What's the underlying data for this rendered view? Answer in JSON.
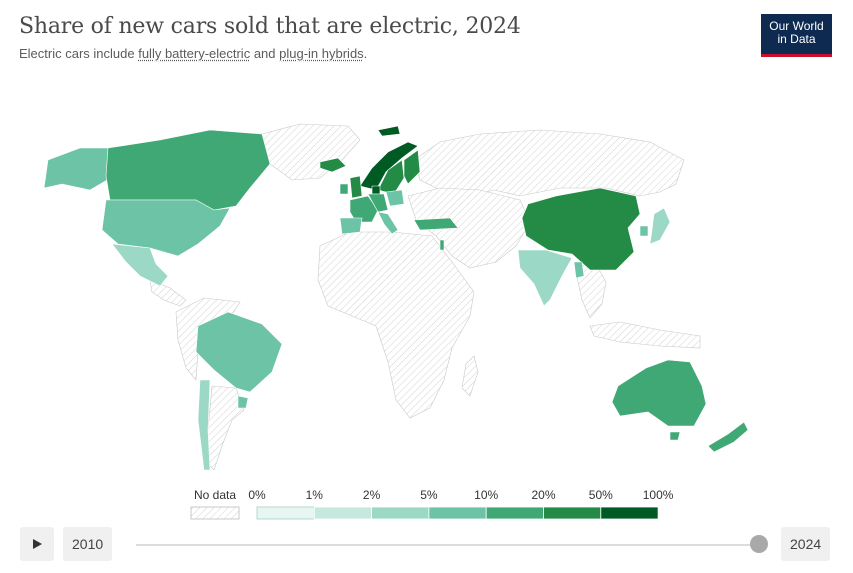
{
  "header": {
    "title": "Share of new cars sold that are electric, 2024",
    "subtitle_prefix": "Electric cars include ",
    "subtitle_link1": "fully battery-electric",
    "subtitle_mid": " and ",
    "subtitle_link2": "plug-in hybrids",
    "subtitle_suffix": "."
  },
  "logo": {
    "line1": "Our World",
    "line2": "in Data"
  },
  "colors": {
    "no_data": "hatched",
    "bins": [
      "#e8f6f3",
      "#c6e9df",
      "#9bd8c5",
      "#6cc3a6",
      "#40a874",
      "#238b45",
      "#005a24"
    ]
  },
  "legend": {
    "no_data_label": "No data",
    "ticks": [
      "0%",
      "1%",
      "2%",
      "5%",
      "10%",
      "20%",
      "50%",
      "100%"
    ]
  },
  "countries": [
    {
      "name": "Norway",
      "bin": 6
    },
    {
      "name": "Sweden",
      "bin": 5
    },
    {
      "name": "Finland",
      "bin": 5
    },
    {
      "name": "Iceland",
      "bin": 5
    },
    {
      "name": "Denmark",
      "bin": 6
    },
    {
      "name": "United Kingdom",
      "bin": 5
    },
    {
      "name": "Ireland",
      "bin": 4
    },
    {
      "name": "France",
      "bin": 4
    },
    {
      "name": "Germany",
      "bin": 4
    },
    {
      "name": "Spain",
      "bin": 3
    },
    {
      "name": "Italy",
      "bin": 3
    },
    {
      "name": "Poland",
      "bin": 3
    },
    {
      "name": "Turkey",
      "bin": 4
    },
    {
      "name": "Israel",
      "bin": 4
    },
    {
      "name": "Canada",
      "bin": 4
    },
    {
      "name": "Alaska (United States)",
      "bin": 3
    },
    {
      "name": "United States",
      "bin": 3
    },
    {
      "name": "Mexico",
      "bin": 2
    },
    {
      "name": "Brazil",
      "bin": 3
    },
    {
      "name": "Chile",
      "bin": 2
    },
    {
      "name": "Uruguay",
      "bin": 3
    },
    {
      "name": "China",
      "bin": 5
    },
    {
      "name": "India",
      "bin": 2
    },
    {
      "name": "Japan",
      "bin": 2
    },
    {
      "name": "South Korea",
      "bin": 3
    },
    {
      "name": "Thailand",
      "bin": 3
    },
    {
      "name": "Australia",
      "bin": 4
    },
    {
      "name": "New Zealand",
      "bin": 4
    }
  ],
  "timeline": {
    "start_year": "2010",
    "end_year": "2024",
    "position_fraction": 1.0
  }
}
